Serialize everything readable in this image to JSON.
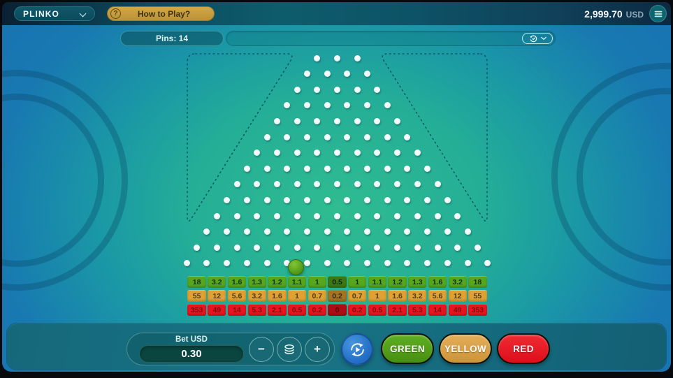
{
  "header": {
    "game_title": "PLINKO",
    "how_to_play": "How to Play?",
    "balance": "2,999.70",
    "currency": "USD"
  },
  "toolbar": {
    "pins_label": "Pins: 14"
  },
  "board": {
    "pin_rows": 14,
    "ball_visible": true
  },
  "multipliers": {
    "green": [
      "18",
      "3.2",
      "1.6",
      "1.3",
      "1.2",
      "1.1",
      "1",
      "0.5",
      "1",
      "1.1",
      "1.2",
      "1.3",
      "1.6",
      "3.2",
      "18"
    ],
    "yellow": [
      "55",
      "12",
      "5.6",
      "3.2",
      "1.6",
      "1",
      "0.7",
      "0.2",
      "0.7",
      "1",
      "1.6",
      "3.2",
      "5.6",
      "12",
      "55"
    ],
    "red": [
      "353",
      "49",
      "14",
      "5.3",
      "2.1",
      "0.5",
      "0.2",
      "0",
      "0.2",
      "0.5",
      "2.1",
      "5.3",
      "14",
      "49",
      "353"
    ]
  },
  "controls": {
    "bet_label": "Bet USD",
    "bet_value": "0.30",
    "minus": "−",
    "plus": "+",
    "bet_buttons": [
      {
        "label": "GREEN",
        "color_top": "#5fae24",
        "color_bottom": "#478f10"
      },
      {
        "label": "YELLOW",
        "color_top": "#e3ad58",
        "color_bottom": "#cd9439"
      },
      {
        "label": "RED",
        "color_top": "#ef2a33",
        "color_bottom": "#dc0f1b"
      }
    ]
  },
  "colors": {
    "slot_green": "#56a71d",
    "slot_green_text": "#16300c",
    "slot_yellow": "#e0a133",
    "slot_yellow_text": "#4d3a10",
    "slot_red": "#ea1420",
    "slot_red_text": "#7e0d10",
    "accent_gold": "#c79b3d",
    "ball_green": "#58a21c",
    "play_button_blue": "#2b7ac6"
  },
  "icons": {
    "question": "?",
    "chevron_down": "v-chevron",
    "menu": "hamburger",
    "history": "circular-arrow-clock",
    "coins": "stacked-coins",
    "autoplay": "circular-arrows-play"
  }
}
